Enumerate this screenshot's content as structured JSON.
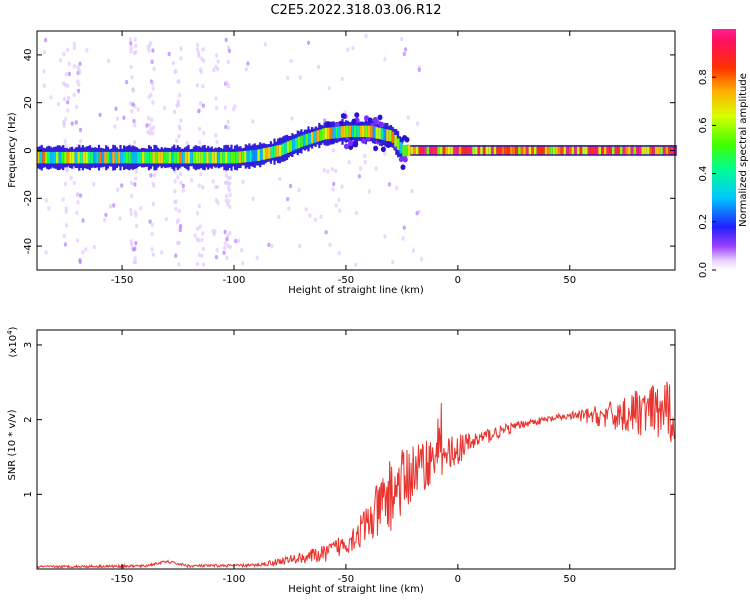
{
  "title": "C2E5.2022.318.03.06.R12",
  "chart_data": [
    {
      "type": "heatmap",
      "name": "spectrogram",
      "xlabel": "Height of straight line (km)",
      "ylabel": "Frequency (Hz)",
      "xlim": [
        -188,
        97
      ],
      "ylim": [
        -50,
        50
      ],
      "xticks": [
        -150,
        -100,
        -50,
        0,
        50
      ],
      "yticks": [
        -40,
        -20,
        0,
        20,
        40
      ],
      "xtick_labels": [
        "-150",
        "-100",
        "-50",
        "0",
        "50"
      ],
      "ytick_labels": [
        "-40",
        "-20",
        "0",
        "20",
        "40"
      ],
      "ridge": {
        "description": "dominant frequency track vs height",
        "x": [
          -188,
          -150,
          -120,
          -100,
          -90,
          -80,
          -70,
          -60,
          -50,
          -40,
          -30,
          -25,
          -20,
          0,
          97
        ],
        "freq_hz": [
          -3,
          -3,
          -3,
          -3,
          -2,
          0,
          4,
          7,
          8,
          8,
          6,
          0,
          0,
          0,
          0
        ]
      },
      "colorbar": {
        "label": "Normalized spectral amplitude",
        "range": [
          0,
          1
        ],
        "ticks": [
          0.0,
          0.2,
          0.4,
          0.6,
          0.8
        ],
        "tick_labels": [
          "0.0",
          "0.2",
          "0.4",
          "0.6",
          "0.8"
        ]
      }
    },
    {
      "type": "line",
      "name": "snr",
      "xlabel": "Height of straight line (km)",
      "ylabel": "SNR (10 * v/v)",
      "exponent_label": "(x10",
      "exponent_power": "4",
      "xlim": [
        -188,
        97
      ],
      "ylim": [
        0,
        3.2
      ],
      "xticks": [
        -150,
        -100,
        -50,
        0,
        50
      ],
      "yticks": [
        1,
        2,
        3
      ],
      "xtick_labels": [
        "-150",
        "-100",
        "-50",
        "0",
        "50"
      ],
      "ytick_labels": [
        "1",
        "2",
        "3"
      ],
      "color": "#e8342f",
      "trend": {
        "x": [
          -188,
          -140,
          -130,
          -120,
          -90,
          -80,
          -60,
          -50,
          -40,
          -30,
          -20,
          -10,
          0,
          10,
          20,
          30,
          40,
          50,
          60,
          70,
          80,
          90,
          97
        ],
        "y": [
          0.03,
          0.04,
          0.1,
          0.04,
          0.05,
          0.1,
          0.2,
          0.35,
          0.6,
          1.0,
          1.3,
          1.5,
          1.6,
          1.75,
          1.85,
          1.95,
          2.0,
          2.05,
          2.05,
          2.05,
          2.1,
          2.1,
          2.1
        ]
      },
      "noise_amplitude": {
        "x": [
          -188,
          -90,
          -75,
          -50,
          -40,
          -30,
          -20,
          -10,
          0,
          10,
          20,
          30,
          50,
          60,
          80,
          97
        ],
        "amp": [
          0.015,
          0.02,
          0.06,
          0.15,
          0.3,
          0.5,
          0.4,
          0.3,
          0.2,
          0.12,
          0.08,
          0.05,
          0.05,
          0.12,
          0.3,
          0.45
        ]
      }
    }
  ]
}
